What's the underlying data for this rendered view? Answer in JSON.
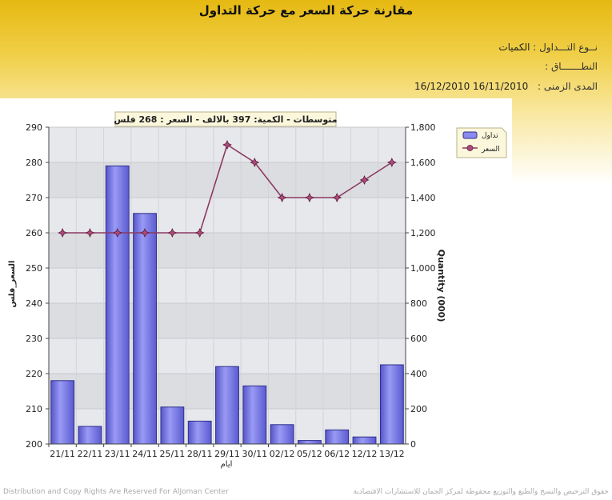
{
  "page": {
    "title": "مقارنة حركة السعر مع حركة التداول"
  },
  "info": {
    "trade_type_label": "نــوع التـــداول :",
    "trade_type_value": "الكميات",
    "range_label": "النطـــــــاق :",
    "range_value": "",
    "period_label": "المدى الزمنى :",
    "period_from": "16/11/2010",
    "period_to": "16/12/2010"
  },
  "chart_data": {
    "type": "bar+line",
    "annotation": "متوسطات - الكمية: 397 بالالف  -  السعر : 268 فلس",
    "xlabel": "ايام",
    "ylabel_left": "السعر_فلس",
    "ylabel_right": "Quantity (000)",
    "categories": [
      "21/11",
      "22/11",
      "23/11",
      "24/11",
      "25/11",
      "28/11",
      "29/11",
      "30/11",
      "02/12",
      "05/12",
      "06/12",
      "12/12",
      "13/12"
    ],
    "y_left": {
      "min": 200,
      "max": 290,
      "ticks": [
        "200",
        "210",
        "220",
        "230",
        "240",
        "250",
        "260",
        "270",
        "280",
        "290"
      ]
    },
    "y_right": {
      "min": 0,
      "max": 1800,
      "ticks": [
        "0",
        "200",
        "400",
        "600",
        "800",
        "1,000",
        "1,200",
        "1,400",
        "1,600",
        "1,800"
      ]
    },
    "series": [
      {
        "name": "تداول",
        "kind": "bar",
        "axis": "right",
        "color": "#7b7bea",
        "values": [
          360,
          100,
          1580,
          1310,
          210,
          130,
          440,
          330,
          110,
          20,
          80,
          40,
          450
        ]
      },
      {
        "name": "السعر",
        "kind": "line",
        "axis": "left",
        "color": "#8b3a62",
        "values": [
          260,
          260,
          260,
          260,
          260,
          260,
          285,
          280,
          270,
          270,
          270,
          275,
          280
        ]
      }
    ],
    "legend_position": "right",
    "grid": true
  },
  "footer": {
    "left": "Distribution and Copy Rights Are Reserved For AlJoman Center",
    "right": "حقوق الترخيص والنسخ والطبع والتوزيع محفوظة لمركز الجمان للاستشارات الاقتصادية"
  }
}
